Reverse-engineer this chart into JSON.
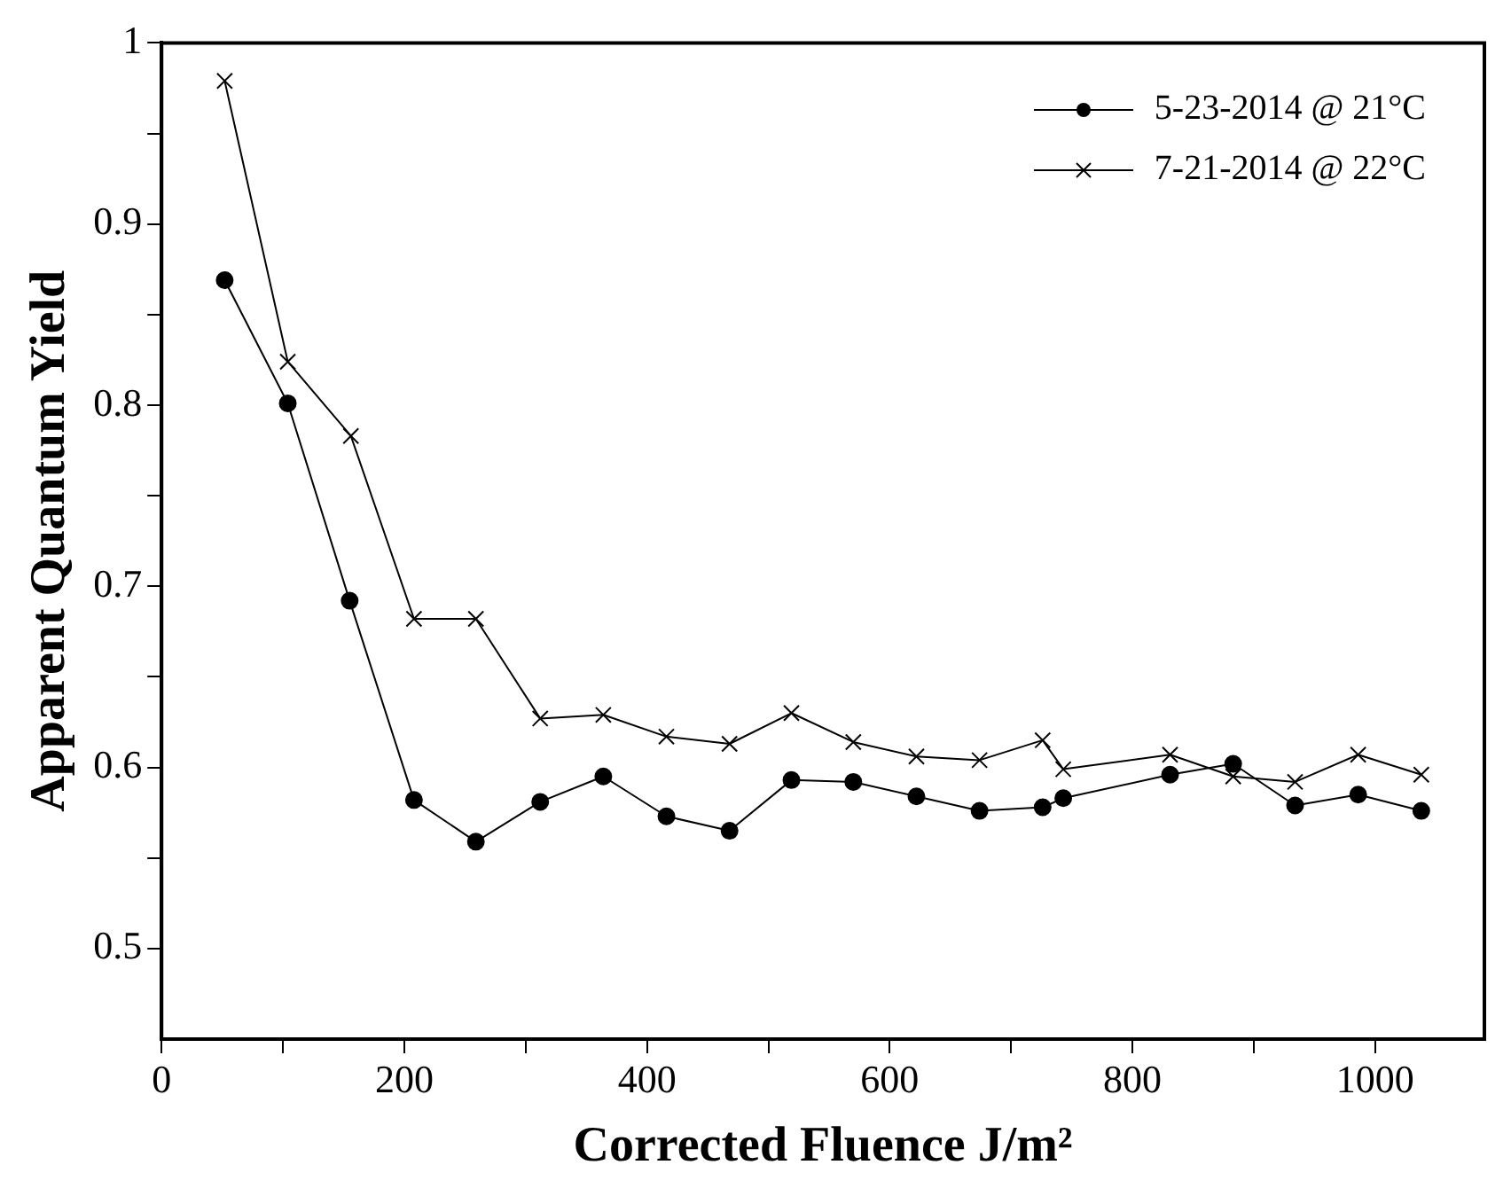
{
  "chart_data": {
    "type": "line",
    "xlabel": "Corrected Fluence J/m²",
    "ylabel": "Apparent Quantum Yield",
    "xlim": [
      0,
      1090
    ],
    "xticks": [
      0,
      {
        "value": 100,
        "label": null
      },
      200,
      {
        "value": 300,
        "label": null
      },
      400,
      {
        "value": 500,
        "label": null
      },
      600,
      {
        "value": 700,
        "label": null
      },
      800,
      {
        "value": 900,
        "label": null
      },
      1000
    ],
    "ylim": [
      0.45,
      1
    ],
    "yticks": [
      0.5,
      {
        "value": 0.55,
        "label": null
      },
      0.6,
      {
        "value": 0.65,
        "label": null
      },
      0.7,
      {
        "value": 0.75,
        "label": null
      },
      0.8,
      {
        "value": 0.85,
        "label": null
      },
      0.9,
      {
        "value": 0.95,
        "label": null
      },
      1
    ],
    "grid": false,
    "legend": "top right",
    "series": [
      {
        "name": "5-23-2014 @ 21°C",
        "color": "#000000",
        "marker": "circle",
        "x": [
          52,
          104,
          155,
          208,
          259,
          312,
          364,
          416,
          468,
          519,
          570,
          622,
          674,
          726,
          743,
          831,
          883,
          934,
          986,
          1038
        ],
        "values": [
          0.869,
          0.801,
          0.692,
          0.582,
          0.559,
          0.581,
          0.595,
          0.573,
          0.565,
          0.593,
          0.592,
          0.584,
          0.576,
          0.578,
          0.583,
          0.596,
          0.602,
          0.579,
          0.585,
          0.576
        ]
      },
      {
        "name": "7-21-2014 @ 22°C",
        "color": "#000000",
        "marker": "cross",
        "x": [
          52,
          104,
          156,
          208,
          259,
          312,
          364,
          416,
          468,
          519,
          570,
          622,
          674,
          726,
          743,
          831,
          883,
          934,
          986,
          1038
        ],
        "values": [
          0.979,
          0.824,
          0.783,
          0.682,
          0.682,
          0.627,
          0.629,
          0.617,
          0.613,
          0.63,
          0.614,
          0.606,
          0.604,
          0.615,
          0.599,
          0.607,
          0.595,
          0.592,
          0.607,
          0.596
        ]
      }
    ]
  }
}
